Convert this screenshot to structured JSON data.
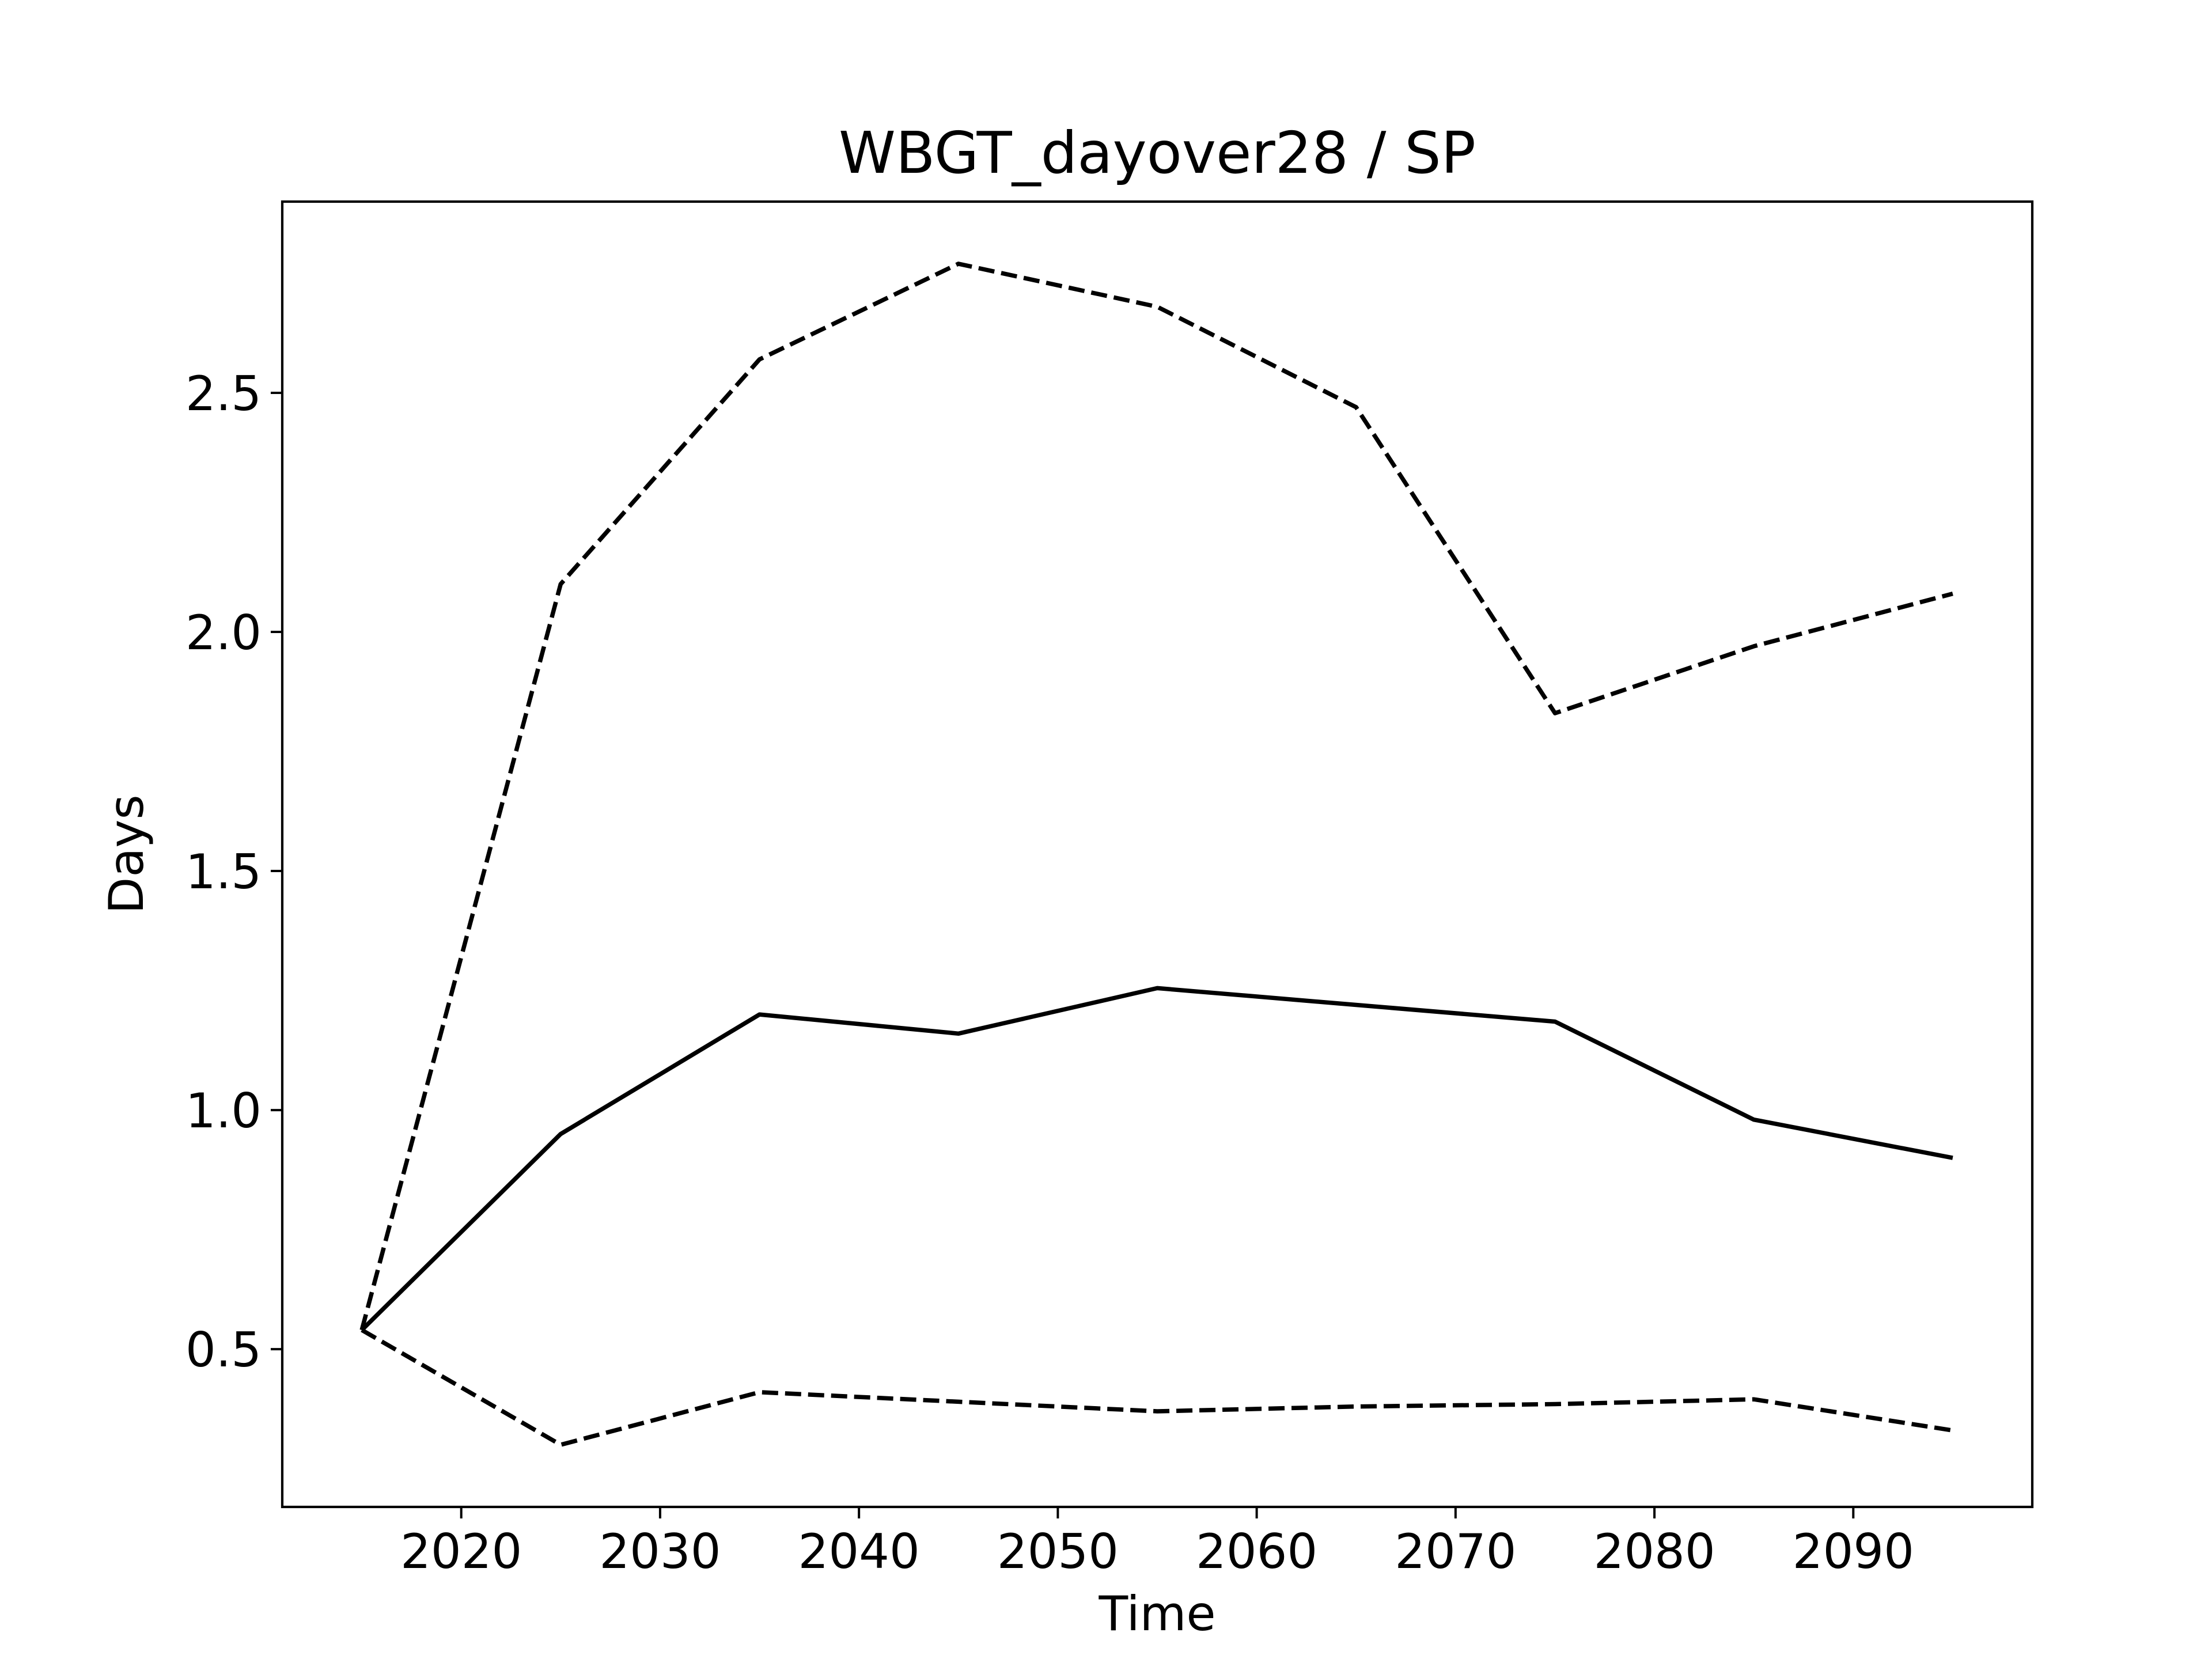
{
  "colors": {
    "background": "#ffffff",
    "line": "#000000",
    "axes": "#000000"
  },
  "chart_data": {
    "type": "line",
    "title": "WBGT_dayover28 / SP",
    "xlabel": "Time",
    "ylabel": "Days",
    "xlim": [
      2011,
      2099
    ],
    "ylim": [
      0.17,
      2.9
    ],
    "xticks": [
      2020,
      2030,
      2040,
      2050,
      2060,
      2070,
      2080,
      2090
    ],
    "yticks": [
      0.5,
      1.0,
      1.5,
      2.0,
      2.5
    ],
    "xtick_labels": [
      "2020",
      "2030",
      "2040",
      "2050",
      "2060",
      "2070",
      "2080",
      "2090"
    ],
    "ytick_labels": [
      "0.5",
      "1.0",
      "1.5",
      "2.0",
      "2.5"
    ],
    "grid": false,
    "x": [
      2015,
      2025,
      2035,
      2045,
      2055,
      2065,
      2075,
      2085,
      2095
    ],
    "series": [
      {
        "style": "solid",
        "values": [
          0.54,
          0.95,
          1.2,
          1.16,
          1.255,
          1.22,
          1.185,
          0.98,
          0.9
        ]
      },
      {
        "style": "dashed",
        "values": [
          0.54,
          2.1,
          2.57,
          2.77,
          2.68,
          2.47,
          1.83,
          1.97,
          2.08
        ]
      },
      {
        "style": "dashed",
        "values": [
          0.54,
          0.3,
          0.41,
          0.39,
          0.37,
          0.38,
          0.385,
          0.395,
          0.33
        ]
      }
    ]
  }
}
